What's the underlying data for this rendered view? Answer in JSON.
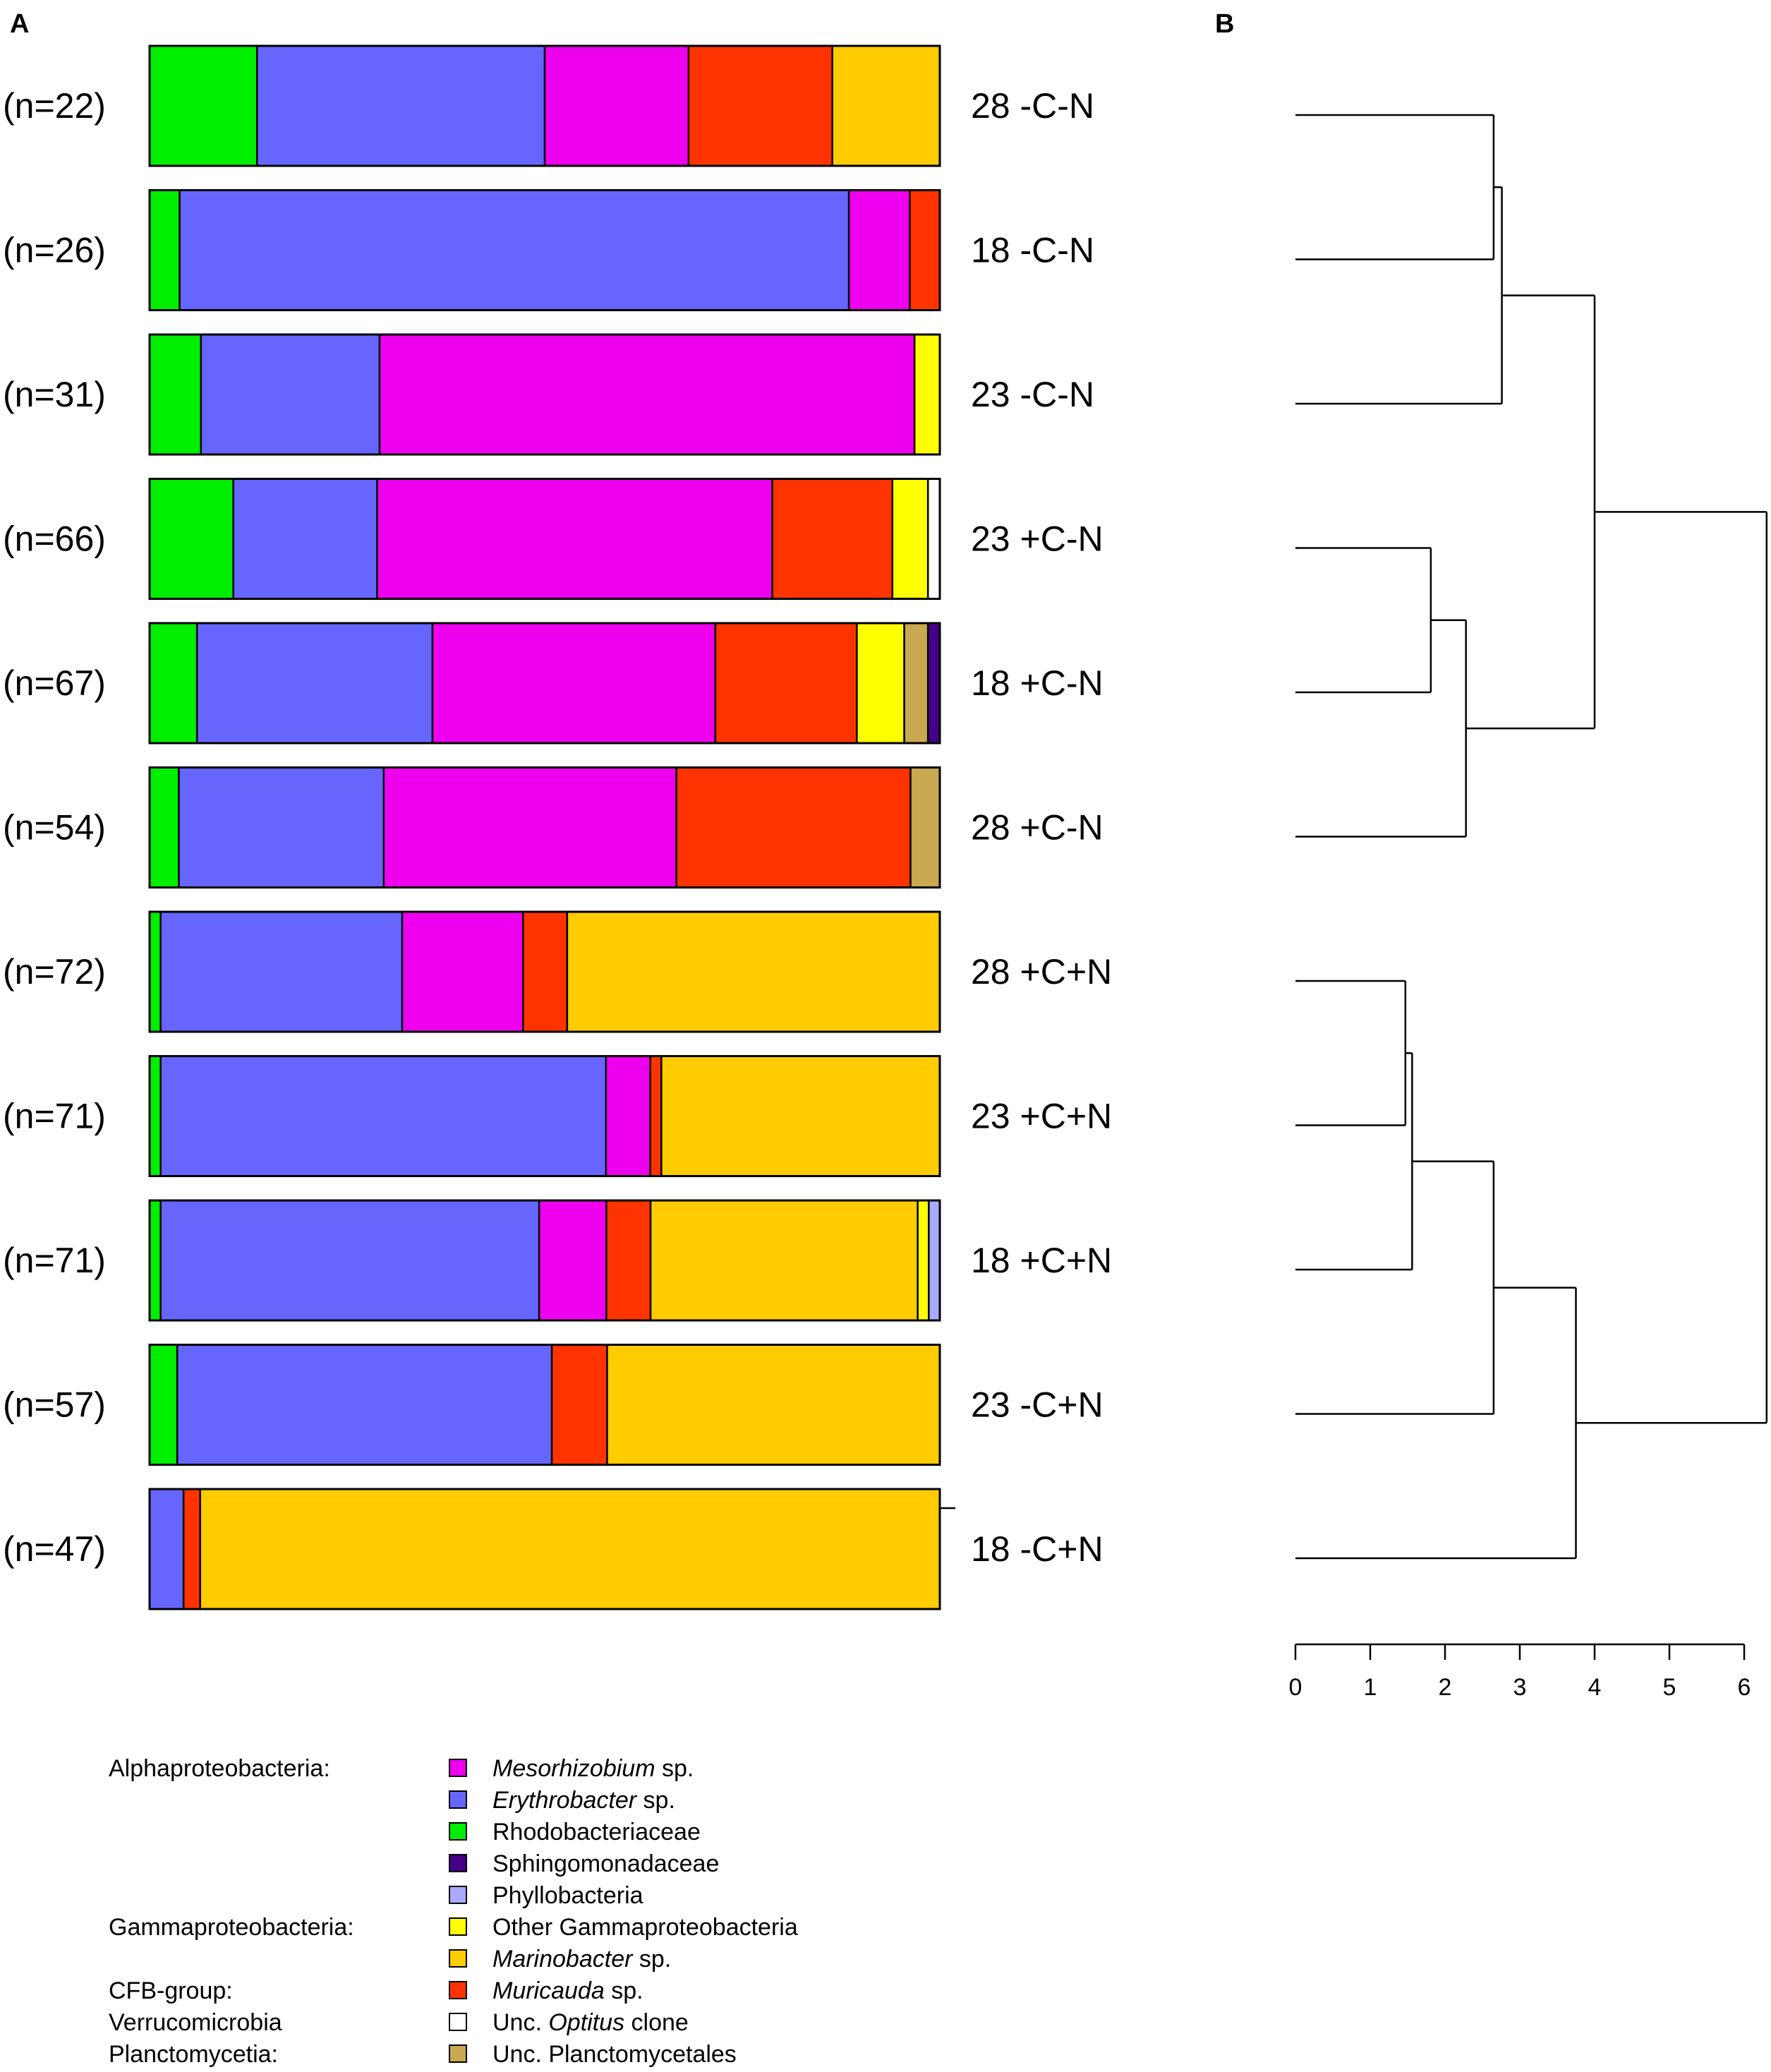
{
  "chart_data": [
    {
      "type": "bar",
      "orientation": "horizontal",
      "stacked": true,
      "normalized": true,
      "panel_label": "A",
      "categories": [
        "28 -C-N",
        "18 -C-N",
        "23 -C-N",
        "23 +C-N",
        "18 +C-N",
        "28 +C-N",
        "28 +C+N",
        "23 +C+N",
        "18 +C+N",
        "23 -C+N",
        "18 -C+N"
      ],
      "sample_sizes": [
        "(n=22)",
        "(n=26)",
        "(n=31)",
        "(n=66)",
        "(n=67)",
        "(n=54)",
        "(n=72)",
        "(n=71)",
        "(n=71)",
        "(n=57)",
        "(n=47)"
      ],
      "series": [
        {
          "name": "Rhodobacteriaceae",
          "color": "#00ee00",
          "values": [
            13.6,
            3.8,
            6.5,
            10.6,
            6.0,
            3.7,
            1.4,
            1.4,
            1.4,
            3.5,
            0
          ]
        },
        {
          "name": "Erythrobacter sp.",
          "color": "#6666ff",
          "values": [
            36.4,
            84.6,
            22.6,
            18.2,
            29.8,
            25.9,
            30.6,
            56.3,
            47.9,
            47.4,
            4.3
          ]
        },
        {
          "name": "Mesorhizobium sp.",
          "color": "#ee00ee",
          "values": [
            18.2,
            7.7,
            67.7,
            50.0,
            35.8,
            37.0,
            15.3,
            5.6,
            8.5,
            0,
            0
          ]
        },
        {
          "name": "Muricauda sp.",
          "color": "#ff3300",
          "values": [
            18.2,
            3.8,
            0,
            15.2,
            17.9,
            29.6,
            5.6,
            1.4,
            5.6,
            7.0,
            2.1
          ]
        },
        {
          "name": "Marinobacter sp.",
          "color": "#ffcc00",
          "values": [
            13.6,
            0,
            0,
            0,
            0,
            0,
            47.2,
            35.2,
            33.8,
            42.1,
            93.6
          ]
        },
        {
          "name": "Other Gammaproteobacteria",
          "color": "#ffff00",
          "values": [
            0,
            0,
            3.2,
            4.5,
            6.0,
            0,
            0,
            0,
            1.4,
            0,
            0
          ]
        },
        {
          "name": "Unc. Optitus clone",
          "color": "#ffffff",
          "values": [
            0,
            0,
            0,
            1.5,
            0,
            0,
            0,
            0,
            0,
            0,
            0
          ]
        },
        {
          "name": "Unc. Planctomycetales",
          "color": "#c8a850",
          "values": [
            0,
            0,
            0,
            0,
            3.0,
            3.7,
            0,
            0,
            0,
            0,
            0
          ]
        },
        {
          "name": "Sphingomonadaceae",
          "color": "#440088",
          "values": [
            0,
            0,
            0,
            0,
            1.5,
            0,
            0,
            0,
            0,
            0,
            0
          ]
        },
        {
          "name": "Phyllobacteria",
          "color": "#aaaaff",
          "values": [
            0,
            0,
            0,
            0,
            0,
            0,
            0,
            0,
            1.4,
            0,
            0
          ]
        }
      ]
    },
    {
      "type": "dendrogram",
      "panel_label": "B",
      "leaves": [
        "28 -C-N",
        "18 -C-N",
        "23 -C-N",
        "23 +C-N",
        "18 +C-N",
        "28 +C-N",
        "28 +C+N",
        "23 +C+N",
        "18 +C+N",
        "23 -C+N",
        "18 -C+N"
      ],
      "xlim": [
        0,
        6
      ],
      "xticks": [
        "0",
        "1",
        "2",
        "3",
        "4",
        "5",
        "6"
      ],
      "merges": [
        {
          "left": "L0",
          "right": "L1",
          "height": 2.65,
          "id": "n1"
        },
        {
          "left": "n1",
          "right": "L2",
          "height": 2.76,
          "id": "n2"
        },
        {
          "left": "L3",
          "right": "L4",
          "height": 1.81,
          "id": "n3"
        },
        {
          "left": "n3",
          "right": "L5",
          "height": 2.28,
          "id": "n4"
        },
        {
          "left": "n2",
          "right": "n4",
          "height": 4.0,
          "id": "n5"
        },
        {
          "left": "L6",
          "right": "L7",
          "height": 1.47,
          "id": "n6"
        },
        {
          "left": "n6",
          "right": "L8",
          "height": 1.56,
          "id": "n7"
        },
        {
          "left": "n7",
          "right": "L9",
          "height": 2.65,
          "id": "n8"
        },
        {
          "left": "n8",
          "right": "L10",
          "height": 3.75,
          "id": "n9"
        },
        {
          "left": "n5",
          "right": "n9",
          "height": 6.3,
          "id": "n10"
        }
      ]
    }
  ],
  "legend": [
    {
      "group": "Alphaproteobacteria:",
      "entries": [
        {
          "name_italic": "Mesorhizobium",
          "name": " sp.",
          "color": "#ee00ee"
        },
        {
          "name_italic": "Erythrobacter",
          "name": " sp.",
          "color": "#6666ff"
        },
        {
          "name_italic": "",
          "name": "Rhodobacteriaceae",
          "color": "#00ee00"
        },
        {
          "name_italic": "",
          "name": "Sphingomonadaceae",
          "color": "#440088"
        },
        {
          "name_italic": "",
          "name": "Phyllobacteria",
          "color": "#aaaaff"
        }
      ]
    },
    {
      "group": "Gammaproteobacteria:",
      "entries": [
        {
          "name_italic": "",
          "name": "Other Gammaproteobacteria",
          "color": "#ffff00"
        },
        {
          "name_italic": "Marinobacter",
          "name": " sp.",
          "color": "#ffcc00"
        }
      ]
    },
    {
      "group": "CFB-group:",
      "entries": [
        {
          "name_italic": "Muricauda",
          "name": " sp.",
          "color": "#ff3300"
        }
      ]
    },
    {
      "group": "Verrucomicrobia",
      "entries": [
        {
          "name_prefix": "Unc. ",
          "name_italic": "Optitus",
          "name": " clone",
          "color": "#ffffff"
        }
      ]
    },
    {
      "group": "Planctomycetia:",
      "entries": [
        {
          "name_italic": "",
          "name": "Unc. Planctomycetales",
          "color": "#c8a850"
        }
      ]
    }
  ]
}
